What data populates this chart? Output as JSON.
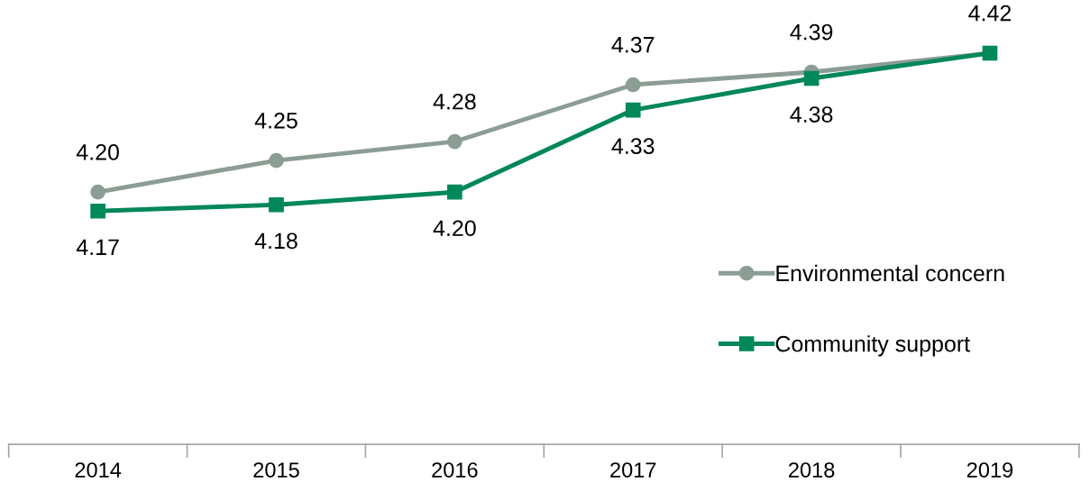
{
  "chart_data": {
    "type": "line",
    "categories": [
      "2014",
      "2015",
      "2016",
      "2017",
      "2018",
      "2019"
    ],
    "series": [
      {
        "name": "Environmental concern",
        "color": "#8c9d94",
        "marker": "circle",
        "values": [
          4.2,
          4.25,
          4.28,
          4.37,
          4.39,
          4.42
        ],
        "value_labels": [
          "4.20",
          "4.25",
          "4.28",
          "4.37",
          "4.39",
          "4.42"
        ]
      },
      {
        "name": "Community support",
        "color": "#00875a",
        "marker": "square",
        "values": [
          4.17,
          4.18,
          4.2,
          4.33,
          4.38,
          4.42
        ],
        "value_labels": [
          "4.17",
          "4.18",
          "4.20",
          "4.33",
          "4.38",
          null
        ]
      }
    ],
    "tick_labels": "x",
    "grid": false,
    "legend": "right",
    "line_style": "solid"
  }
}
